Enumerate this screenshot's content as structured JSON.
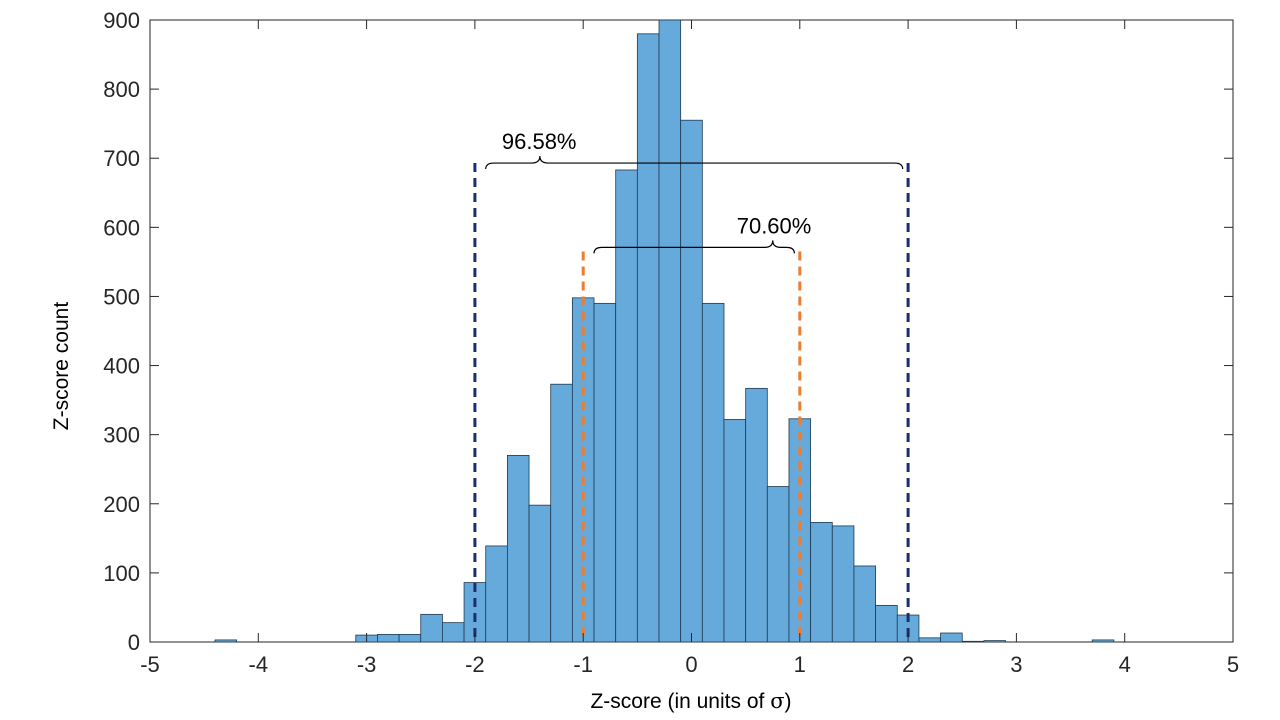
{
  "chart_data": {
    "type": "bar",
    "title": "",
    "xlabel": "Z-score (in units of ",
    "xlabel_symbol": "σ",
    "xlabel_suffix": ")",
    "ylabel": "Z-score count",
    "xlim": [
      -5,
      5
    ],
    "ylim": [
      0,
      900
    ],
    "xticks": [
      -5,
      -4,
      -3,
      -2,
      -1,
      0,
      1,
      2,
      3,
      4,
      5
    ],
    "yticks": [
      0,
      100,
      200,
      300,
      400,
      500,
      600,
      700,
      800,
      900
    ],
    "bin_width": 0.2,
    "bar_color": "#66aadb",
    "bar_edge_color": "#1f3a52",
    "grid": false,
    "bins": [
      {
        "x": -4.4,
        "count": 3
      },
      {
        "x": -3.1,
        "count": 10
      },
      {
        "x": -2.9,
        "count": 11
      },
      {
        "x": -2.7,
        "count": 11
      },
      {
        "x": -2.5,
        "count": 40
      },
      {
        "x": -2.3,
        "count": 28
      },
      {
        "x": -2.1,
        "count": 86
      },
      {
        "x": -1.9,
        "count": 139
      },
      {
        "x": -1.7,
        "count": 270
      },
      {
        "x": -1.5,
        "count": 198
      },
      {
        "x": -1.3,
        "count": 373
      },
      {
        "x": -1.1,
        "count": 498
      },
      {
        "x": -0.9,
        "count": 490
      },
      {
        "x": -0.7,
        "count": 683
      },
      {
        "x": -0.5,
        "count": 880
      },
      {
        "x": -0.3,
        "count": 900
      },
      {
        "x": -0.1,
        "count": 755
      },
      {
        "x": 0.1,
        "count": 490
      },
      {
        "x": 0.3,
        "count": 322
      },
      {
        "x": 0.5,
        "count": 367
      },
      {
        "x": 0.7,
        "count": 225
      },
      {
        "x": 0.9,
        "count": 323
      },
      {
        "x": 1.1,
        "count": 173
      },
      {
        "x": 1.3,
        "count": 168
      },
      {
        "x": 1.5,
        "count": 110
      },
      {
        "x": 1.7,
        "count": 53
      },
      {
        "x": 1.9,
        "count": 39
      },
      {
        "x": 2.1,
        "count": 6
      },
      {
        "x": 2.3,
        "count": 13
      },
      {
        "x": 2.5,
        "count": 1
      },
      {
        "x": 2.7,
        "count": 2
      },
      {
        "x": 3.7,
        "count": 3
      }
    ],
    "vlines": [
      {
        "x": -2,
        "color": "#1b2f6e",
        "label": "minus-two-sigma"
      },
      {
        "x": 2,
        "color": "#1b2f6e",
        "label": "plus-two-sigma"
      },
      {
        "x": -1,
        "color": "#ed7d31",
        "label": "minus-one-sigma"
      },
      {
        "x": 1,
        "color": "#ed7d31",
        "label": "plus-one-sigma"
      }
    ],
    "annotations": [
      {
        "text": "96.58%",
        "from": -1.9,
        "to": 1.95,
        "y": 693
      },
      {
        "text": "70.60%",
        "from": -0.9,
        "to": 0.95,
        "y": 571
      }
    ]
  }
}
